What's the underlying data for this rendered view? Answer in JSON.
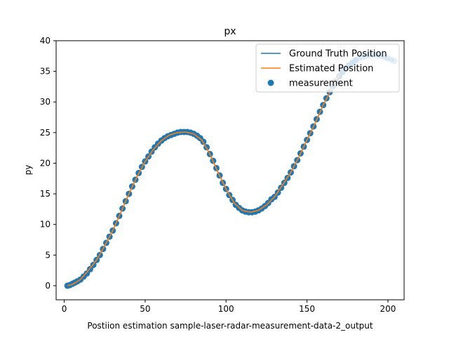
{
  "chart_data": {
    "type": "line",
    "title": "px",
    "xlabel": "Postiion estimation sample-laser-radar-measurement-data-2_output",
    "ylabel": "py",
    "xlim": [
      -5,
      210
    ],
    "ylim": [
      -2.3,
      40
    ],
    "xticks": [
      0,
      50,
      100,
      150,
      200
    ],
    "yticks": [
      0,
      5,
      10,
      15,
      20,
      25,
      30,
      35,
      40
    ],
    "grid": false,
    "legend": {
      "placement": "top-right"
    },
    "colors": {
      "ground_truth": "#1f77b4",
      "estimated": "#ff7f0e",
      "measurement": "#1f77b4"
    },
    "series": [
      {
        "name": "Ground Truth Position",
        "kind": "line",
        "x": [
          2,
          5,
          10,
          15,
          20,
          25,
          30,
          35,
          40,
          45,
          50,
          55,
          60,
          65,
          70,
          75,
          80,
          85,
          90,
          95,
          100,
          105,
          110,
          115,
          120,
          125,
          130,
          135,
          140,
          145,
          150,
          155,
          160,
          165,
          170,
          175,
          180,
          185,
          190,
          195,
          200,
          204
        ],
        "y": [
          0,
          0.2,
          1,
          2.5,
          4.2,
          6.5,
          9,
          12,
          15,
          17.8,
          20.3,
          22.2,
          23.7,
          24.6,
          25,
          25.1,
          24.8,
          23.8,
          21.5,
          18.5,
          15.8,
          13.5,
          12.3,
          12,
          12.3,
          13.2,
          14.5,
          16.5,
          18.5,
          21,
          23.8,
          26.5,
          29.5,
          32,
          34.5,
          36,
          37,
          37.5,
          37.6,
          37.5,
          37,
          36.8
        ]
      },
      {
        "name": "Estimated Position",
        "kind": "line",
        "x": [
          2,
          5,
          10,
          15,
          20,
          25,
          30,
          35,
          40,
          45,
          50,
          55,
          60,
          65,
          70,
          75,
          80,
          85,
          90,
          95,
          100,
          105,
          110,
          115,
          120,
          125,
          130,
          135,
          140,
          145,
          150,
          155,
          160,
          165,
          170
        ],
        "y": [
          0,
          0.2,
          1,
          2.5,
          4.2,
          6.5,
          9,
          12,
          15,
          17.8,
          20.3,
          22.2,
          23.7,
          24.6,
          25,
          25.1,
          24.8,
          23.8,
          21.5,
          18.5,
          15.8,
          13.5,
          12.3,
          12,
          12.3,
          13.2,
          14.5,
          16.5,
          18.5,
          21,
          23.8,
          26.5,
          29.5,
          32,
          34.5
        ]
      },
      {
        "name": "measurement",
        "kind": "scatter",
        "x": [
          2,
          3.5,
          5,
          6.5,
          8,
          10,
          12,
          14,
          16,
          18,
          20,
          22,
          24,
          26,
          28,
          30,
          32,
          34,
          36,
          38,
          40,
          42,
          44,
          46,
          48,
          50,
          52,
          54,
          56,
          58,
          60,
          62,
          64,
          66,
          68,
          70,
          72,
          74,
          76,
          78,
          80,
          82,
          84,
          86,
          88,
          90,
          92,
          94,
          96,
          98,
          100,
          102,
          104,
          106,
          108,
          110,
          112,
          114,
          116,
          118,
          120,
          122,
          124,
          126,
          128,
          130,
          132,
          134,
          136,
          138,
          140,
          142,
          144,
          146,
          148,
          150,
          152,
          154,
          156,
          158,
          160,
          162,
          164,
          166,
          168,
          170,
          172,
          174,
          176,
          178,
          180,
          182,
          184,
          186,
          188,
          190,
          192,
          194,
          196,
          198,
          200,
          202,
          204
        ],
        "y": [
          0,
          0.1,
          0.3,
          0.5,
          0.7,
          1,
          1.5,
          2,
          2.7,
          3.4,
          4.2,
          5,
          6,
          7,
          8,
          9,
          10.2,
          11.4,
          12.6,
          13.8,
          15,
          16.2,
          17.3,
          18.4,
          19.4,
          20.3,
          21.1,
          21.9,
          22.6,
          23.2,
          23.7,
          24.1,
          24.4,
          24.6,
          24.8,
          25,
          25.1,
          25.1,
          25.1,
          25,
          24.8,
          24.5,
          24.1,
          23.5,
          22.6,
          21.5,
          20.4,
          19.2,
          18,
          16.8,
          15.8,
          14.8,
          14,
          13.2,
          12.7,
          12.3,
          12.1,
          12,
          12,
          12.1,
          12.3,
          12.6,
          13,
          13.5,
          14.1,
          14.5,
          15.2,
          16,
          16.8,
          17.6,
          18.5,
          19.5,
          20.5,
          21.6,
          22.7,
          23.8,
          24.9,
          26,
          27.2,
          28.4,
          29.5,
          30.6,
          31.6,
          32.6,
          33.4,
          34.2,
          34.9,
          35.5,
          36,
          36.4,
          36.8,
          37.1,
          37.3,
          37.5,
          37.6,
          37.7,
          37.7,
          37.6,
          37.5,
          37.3,
          37.1,
          36.9,
          36.7
        ]
      }
    ]
  }
}
